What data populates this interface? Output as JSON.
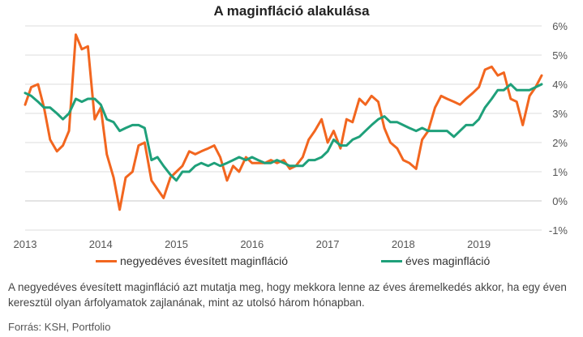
{
  "title": "A maginfláció alakulása",
  "note": "A negyedéves évesített maginfláció azt mutatja meg, hogy mekkora lenne az éves áremelkedés akkor, ha egy éven keresztül olyan árfolyamatok zajlanának, mint az utolsó három hónapban.",
  "source": "Forrás: KSH, Portfolio",
  "colors": {
    "quarterly": "#f2661f",
    "annual": "#1fa07a",
    "grid": "#dddddd",
    "zero": "#c8c8c8"
  },
  "chart_data": {
    "type": "line",
    "title": "A maginfláció alakulása",
    "xlabel": "",
    "ylabel": "",
    "x_ticks": [
      "2013",
      "2014",
      "2015",
      "2016",
      "2017",
      "2018",
      "2019"
    ],
    "x_range": [
      2013.0,
      2019.83
    ],
    "ylim": [
      -1,
      6
    ],
    "y_ticks": [
      "-1%",
      "0%",
      "1%",
      "2%",
      "3%",
      "4%",
      "5%",
      "6%"
    ],
    "y_tick_values": [
      -1,
      0,
      1,
      2,
      3,
      4,
      5,
      6
    ],
    "grid": "horizontal",
    "legend_position": "bottom",
    "series": [
      {
        "name": "negyedéves évesített maginfláció",
        "color": "#f2661f",
        "points": [
          [
            2013.0,
            3.3
          ],
          [
            2013.08,
            3.9
          ],
          [
            2013.17,
            4.0
          ],
          [
            2013.25,
            3.2
          ],
          [
            2013.33,
            2.1
          ],
          [
            2013.42,
            1.7
          ],
          [
            2013.5,
            1.9
          ],
          [
            2013.58,
            2.4
          ],
          [
            2013.67,
            5.7
          ],
          [
            2013.75,
            5.2
          ],
          [
            2013.83,
            5.3
          ],
          [
            2013.92,
            2.8
          ],
          [
            2014.0,
            3.2
          ],
          [
            2014.08,
            1.6
          ],
          [
            2014.17,
            0.8
          ],
          [
            2014.25,
            -0.3
          ],
          [
            2014.33,
            0.8
          ],
          [
            2014.42,
            1.0
          ],
          [
            2014.5,
            1.9
          ],
          [
            2014.58,
            2.0
          ],
          [
            2014.67,
            0.7
          ],
          [
            2014.75,
            0.4
          ],
          [
            2014.83,
            0.1
          ],
          [
            2014.92,
            0.8
          ],
          [
            2015.0,
            1.0
          ],
          [
            2015.08,
            1.2
          ],
          [
            2015.17,
            1.7
          ],
          [
            2015.25,
            1.6
          ],
          [
            2015.33,
            1.7
          ],
          [
            2015.42,
            1.8
          ],
          [
            2015.5,
            1.9
          ],
          [
            2015.58,
            1.5
          ],
          [
            2015.67,
            0.7
          ],
          [
            2015.75,
            1.2
          ],
          [
            2015.83,
            1.0
          ],
          [
            2015.92,
            1.5
          ],
          [
            2016.0,
            1.3
          ],
          [
            2016.08,
            1.3
          ],
          [
            2016.17,
            1.3
          ],
          [
            2016.25,
            1.4
          ],
          [
            2016.33,
            1.3
          ],
          [
            2016.42,
            1.4
          ],
          [
            2016.5,
            1.1
          ],
          [
            2016.58,
            1.2
          ],
          [
            2016.67,
            1.5
          ],
          [
            2016.75,
            2.1
          ],
          [
            2016.83,
            2.4
          ],
          [
            2016.92,
            2.8
          ],
          [
            2017.0,
            2.0
          ],
          [
            2017.08,
            2.4
          ],
          [
            2017.17,
            1.8
          ],
          [
            2017.25,
            2.8
          ],
          [
            2017.33,
            2.7
          ],
          [
            2017.42,
            3.5
          ],
          [
            2017.5,
            3.3
          ],
          [
            2017.58,
            3.6
          ],
          [
            2017.67,
            3.4
          ],
          [
            2017.75,
            2.5
          ],
          [
            2017.83,
            2.0
          ],
          [
            2017.92,
            1.8
          ],
          [
            2018.0,
            1.4
          ],
          [
            2018.08,
            1.3
          ],
          [
            2018.17,
            1.1
          ],
          [
            2018.25,
            2.1
          ],
          [
            2018.33,
            2.4
          ],
          [
            2018.42,
            3.2
          ],
          [
            2018.5,
            3.6
          ],
          [
            2018.58,
            3.5
          ],
          [
            2018.67,
            3.4
          ],
          [
            2018.75,
            3.3
          ],
          [
            2018.83,
            3.5
          ],
          [
            2018.92,
            3.7
          ],
          [
            2019.0,
            3.9
          ],
          [
            2019.08,
            4.5
          ],
          [
            2019.17,
            4.6
          ],
          [
            2019.25,
            4.3
          ],
          [
            2019.33,
            4.4
          ],
          [
            2019.42,
            3.5
          ],
          [
            2019.5,
            3.4
          ],
          [
            2019.58,
            2.6
          ],
          [
            2019.67,
            3.6
          ],
          [
            2019.75,
            3.9
          ],
          [
            2019.83,
            4.3
          ]
        ]
      },
      {
        "name": "éves maginfláció",
        "color": "#1fa07a",
        "points": [
          [
            2013.0,
            3.7
          ],
          [
            2013.08,
            3.6
          ],
          [
            2013.17,
            3.4
          ],
          [
            2013.25,
            3.2
          ],
          [
            2013.33,
            3.2
          ],
          [
            2013.42,
            3.0
          ],
          [
            2013.5,
            2.8
          ],
          [
            2013.58,
            3.0
          ],
          [
            2013.67,
            3.5
          ],
          [
            2013.75,
            3.4
          ],
          [
            2013.83,
            3.5
          ],
          [
            2013.92,
            3.5
          ],
          [
            2014.0,
            3.3
          ],
          [
            2014.08,
            2.8
          ],
          [
            2014.17,
            2.7
          ],
          [
            2014.25,
            2.4
          ],
          [
            2014.33,
            2.5
          ],
          [
            2014.42,
            2.6
          ],
          [
            2014.5,
            2.6
          ],
          [
            2014.58,
            2.5
          ],
          [
            2014.67,
            1.4
          ],
          [
            2014.75,
            1.5
          ],
          [
            2014.83,
            1.2
          ],
          [
            2014.92,
            0.9
          ],
          [
            2015.0,
            0.7
          ],
          [
            2015.08,
            1.0
          ],
          [
            2015.17,
            1.0
          ],
          [
            2015.25,
            1.2
          ],
          [
            2015.33,
            1.3
          ],
          [
            2015.42,
            1.2
          ],
          [
            2015.5,
            1.3
          ],
          [
            2015.58,
            1.2
          ],
          [
            2015.67,
            1.3
          ],
          [
            2015.75,
            1.4
          ],
          [
            2015.83,
            1.5
          ],
          [
            2015.92,
            1.4
          ],
          [
            2016.0,
            1.5
          ],
          [
            2016.08,
            1.4
          ],
          [
            2016.17,
            1.3
          ],
          [
            2016.25,
            1.3
          ],
          [
            2016.33,
            1.4
          ],
          [
            2016.42,
            1.3
          ],
          [
            2016.5,
            1.2
          ],
          [
            2016.58,
            1.2
          ],
          [
            2016.67,
            1.2
          ],
          [
            2016.75,
            1.4
          ],
          [
            2016.83,
            1.4
          ],
          [
            2016.92,
            1.5
          ],
          [
            2017.0,
            1.7
          ],
          [
            2017.08,
            2.1
          ],
          [
            2017.17,
            1.9
          ],
          [
            2017.25,
            1.9
          ],
          [
            2017.33,
            2.1
          ],
          [
            2017.42,
            2.2
          ],
          [
            2017.5,
            2.4
          ],
          [
            2017.58,
            2.6
          ],
          [
            2017.67,
            2.8
          ],
          [
            2017.75,
            2.9
          ],
          [
            2017.83,
            2.7
          ],
          [
            2017.92,
            2.7
          ],
          [
            2018.0,
            2.6
          ],
          [
            2018.08,
            2.5
          ],
          [
            2018.17,
            2.4
          ],
          [
            2018.25,
            2.5
          ],
          [
            2018.33,
            2.4
          ],
          [
            2018.42,
            2.4
          ],
          [
            2018.5,
            2.4
          ],
          [
            2018.58,
            2.4
          ],
          [
            2018.67,
            2.2
          ],
          [
            2018.75,
            2.4
          ],
          [
            2018.83,
            2.6
          ],
          [
            2018.92,
            2.6
          ],
          [
            2019.0,
            2.8
          ],
          [
            2019.08,
            3.2
          ],
          [
            2019.17,
            3.5
          ],
          [
            2019.25,
            3.8
          ],
          [
            2019.33,
            3.8
          ],
          [
            2019.42,
            4.0
          ],
          [
            2019.5,
            3.8
          ],
          [
            2019.58,
            3.8
          ],
          [
            2019.67,
            3.8
          ],
          [
            2019.75,
            3.9
          ],
          [
            2019.83,
            4.0
          ]
        ]
      }
    ]
  }
}
